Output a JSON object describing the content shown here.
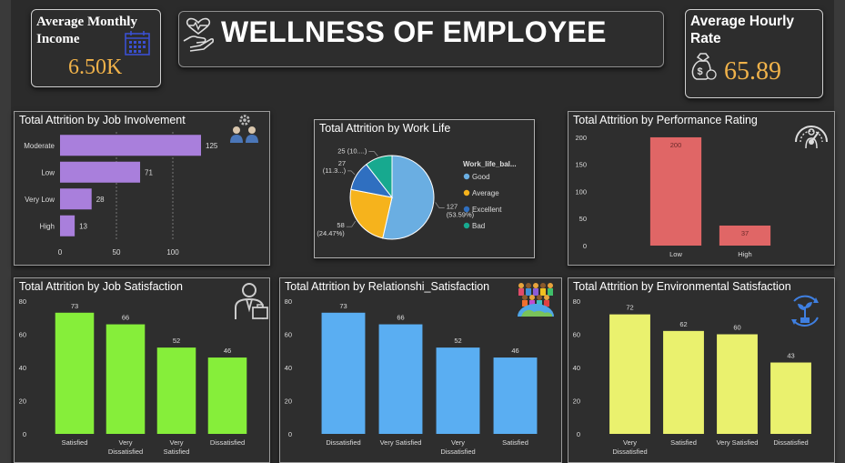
{
  "header": {
    "title": "WELLNESS OF EMPLOYEE"
  },
  "kpis": {
    "income": {
      "label_line1": "Average Monthly",
      "label_line2": "Income",
      "value": "6.50K"
    },
    "hourly": {
      "label_line1": "Average Hourly",
      "label_line2": "Rate",
      "value": "65.89"
    }
  },
  "icons": {
    "title": "heart-in-hand-icon",
    "income": "calendar-icon",
    "hourly": "money-bag-icon",
    "job_involvement": "team-gear-icon",
    "performance": "performance-gauge-icon",
    "job_satisfaction": "employee-icon",
    "relationship": "people-globe-icon",
    "environment": "plant-cycle-icon"
  },
  "colors": {
    "purple": "#a97fdc",
    "blue": "#5aaef2",
    "red": "#e06666",
    "green": "#86ee3a",
    "yellow": "#eaf16e",
    "pie": [
      "#6aaee2",
      "#f6b31c",
      "#2f6fc0",
      "#17a98f"
    ]
  },
  "chart_data": [
    {
      "id": "job_involvement",
      "type": "bar",
      "orientation": "horizontal",
      "title": "Total Attrition by Job Involvement",
      "categories": [
        "Moderate",
        "Low",
        "Very Low",
        "High"
      ],
      "values": [
        125,
        71,
        28,
        13
      ],
      "x_ticks": [
        "0",
        "50",
        "100"
      ],
      "xlim": [
        0,
        150
      ],
      "grid": true
    },
    {
      "id": "work_life",
      "type": "pie",
      "title": "Total Attrition by Work Life",
      "legend_title": "Work_life_bal...",
      "legend": [
        "Good",
        "Average",
        "Excellent",
        "Bad"
      ],
      "values": [
        127,
        58,
        27,
        25
      ],
      "labels": [
        {
          "value": "127",
          "pct": "(53.59%)"
        },
        {
          "value": "58",
          "pct": "(24.47%)"
        },
        {
          "value": "27",
          "pct": "(11.3...)"
        },
        {
          "value": "25 (10....)",
          "pct": ""
        }
      ]
    },
    {
      "id": "performance_rating",
      "type": "bar",
      "title": "Total Attrition by Performance Rating",
      "categories": [
        "Low",
        "High"
      ],
      "values": [
        200,
        37
      ],
      "y_ticks": [
        "0",
        "50",
        "100",
        "150",
        "200"
      ],
      "ylim": [
        0,
        210
      ]
    },
    {
      "id": "job_satisfaction",
      "type": "bar",
      "title": "Total Attrition by Job Satisfaction",
      "categories": [
        [
          "Satisfied"
        ],
        [
          "Very",
          "Dissatisfied"
        ],
        [
          "Very",
          "Satisfied"
        ],
        [
          "Dissatisfied"
        ]
      ],
      "values": [
        73,
        66,
        52,
        46
      ],
      "y_ticks": [
        "0",
        "20",
        "40",
        "60",
        "80"
      ],
      "ylim": [
        0,
        80
      ]
    },
    {
      "id": "relationship_satisfaction",
      "type": "bar",
      "title": "Total Attrition by Relationshi_Satisfaction",
      "categories": [
        [
          "Dissatisfied"
        ],
        [
          "Very Satisfied"
        ],
        [
          "Very",
          "Dissatisfied"
        ],
        [
          "Satisfied"
        ]
      ],
      "values": [
        73,
        66,
        52,
        46
      ],
      "y_ticks": [
        "0",
        "20",
        "40",
        "60",
        "80"
      ],
      "ylim": [
        0,
        80
      ]
    },
    {
      "id": "environmental_satisfaction",
      "type": "bar",
      "title": "Total Attrition by Environmental Satisfaction",
      "categories": [
        [
          "Very",
          "Dissatisfied"
        ],
        [
          "Satisfied"
        ],
        [
          "Very Satisfied"
        ],
        [
          "Dissatisfied"
        ]
      ],
      "values": [
        72,
        62,
        60,
        43
      ],
      "y_ticks": [
        "0",
        "20",
        "40",
        "60",
        "80"
      ],
      "ylim": [
        0,
        80
      ]
    }
  ]
}
